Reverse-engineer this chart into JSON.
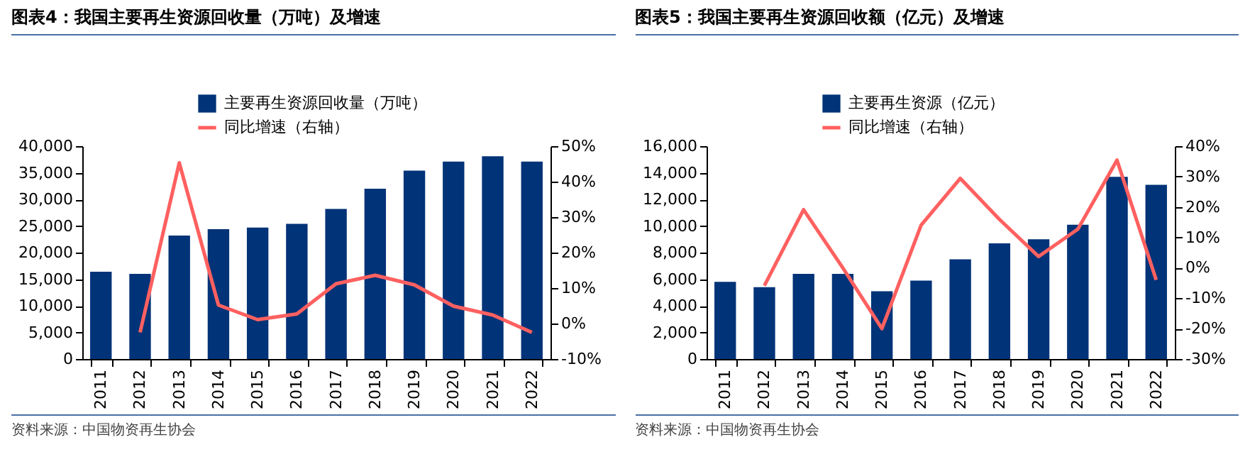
{
  "chart_data": [
    {
      "type": "bar",
      "title": "图表4：我国主要再生资源回收量（万吨）及增速",
      "annotations": [
        "资料来源：中国物资再生协会"
      ],
      "categories": [
        "2011",
        "2012",
        "2013",
        "2014",
        "2015",
        "2016",
        "2017",
        "2018",
        "2019",
        "2020",
        "2021",
        "2022"
      ],
      "legend": "top",
      "grid": false,
      "marker": "none",
      "series": [
        {
          "name": "主要再生资源回收量（万吨）",
          "color": "#003378",
          "values": [
            16400,
            16000,
            23200,
            24400,
            24700,
            25400,
            28200,
            32000,
            35400,
            37100,
            38100,
            37100
          ]
        },
        {
          "name": "同比增速（右轴）",
          "type": "line",
          "axis": "y2",
          "color": "#ff6060",
          "values": [
            null,
            -2.5,
            45.3,
            5.2,
            1.1,
            2.7,
            11.2,
            13.6,
            10.9,
            4.9,
            2.4,
            -2.5
          ]
        }
      ],
      "ylim": [
        0,
        40000
      ],
      "yticks": [
        {
          "value": 0,
          "label": "0"
        },
        {
          "value": 5000,
          "label": "5,000"
        },
        {
          "value": 10000,
          "label": "10,000"
        },
        {
          "value": 15000,
          "label": "15,000"
        },
        {
          "value": 20000,
          "label": "20,000"
        },
        {
          "value": 25000,
          "label": "25,000"
        },
        {
          "value": 30000,
          "label": "30,000"
        },
        {
          "value": 35000,
          "label": "35,000"
        },
        {
          "value": 40000,
          "label": "40,000"
        }
      ],
      "y2lim": [
        -10,
        50
      ],
      "y2ticks": [
        {
          "value": -10,
          "label": "-10%"
        },
        {
          "value": 0,
          "label": "0%"
        },
        {
          "value": 10,
          "label": "10%"
        },
        {
          "value": 20,
          "label": "20%"
        },
        {
          "value": 30,
          "label": "30%"
        },
        {
          "value": 40,
          "label": "40%"
        },
        {
          "value": 50,
          "label": "50%"
        }
      ]
    },
    {
      "type": "bar",
      "title": "图表5：我国主要再生资源回收额（亿元）及增速",
      "annotations": [
        "资料来源：中国物资再生协会"
      ],
      "categories": [
        "2011",
        "2012",
        "2013",
        "2014",
        "2015",
        "2016",
        "2017",
        "2018",
        "2019",
        "2020",
        "2021",
        "2022"
      ],
      "legend": "top",
      "grid": false,
      "marker": "none",
      "series": [
        {
          "name": "主要再生资源（亿元）",
          "color": "#003378",
          "values": [
            5800,
            5400,
            6400,
            6400,
            5100,
            5900,
            7500,
            8700,
            9000,
            10100,
            13700,
            13100
          ]
        },
        {
          "name": "同比增速（右轴）",
          "type": "line",
          "axis": "y2",
          "color": "#ff6060",
          "values": [
            null,
            -5.9,
            19.1,
            0,
            -20,
            14,
            29.4,
            15.9,
            3.7,
            12.7,
            35.4,
            -4
          ]
        }
      ],
      "ylim": [
        0,
        16000
      ],
      "yticks": [
        {
          "value": 0,
          "label": "0"
        },
        {
          "value": 2000,
          "label": "2,000"
        },
        {
          "value": 4000,
          "label": "4,000"
        },
        {
          "value": 6000,
          "label": "6,000"
        },
        {
          "value": 8000,
          "label": "8,000"
        },
        {
          "value": 10000,
          "label": "10,000"
        },
        {
          "value": 12000,
          "label": "12,000"
        },
        {
          "value": 14000,
          "label": "14,000"
        },
        {
          "value": 16000,
          "label": "16,000"
        }
      ],
      "y2lim": [
        -30,
        40
      ],
      "y2ticks": [
        {
          "value": -30,
          "label": "-30%"
        },
        {
          "value": -20,
          "label": "-20%"
        },
        {
          "value": -10,
          "label": "-10%"
        },
        {
          "value": 0,
          "label": "0%"
        },
        {
          "value": 10,
          "label": "10%"
        },
        {
          "value": 20,
          "label": "20%"
        },
        {
          "value": 30,
          "label": "30%"
        },
        {
          "value": 40,
          "label": "40%"
        }
      ]
    }
  ]
}
